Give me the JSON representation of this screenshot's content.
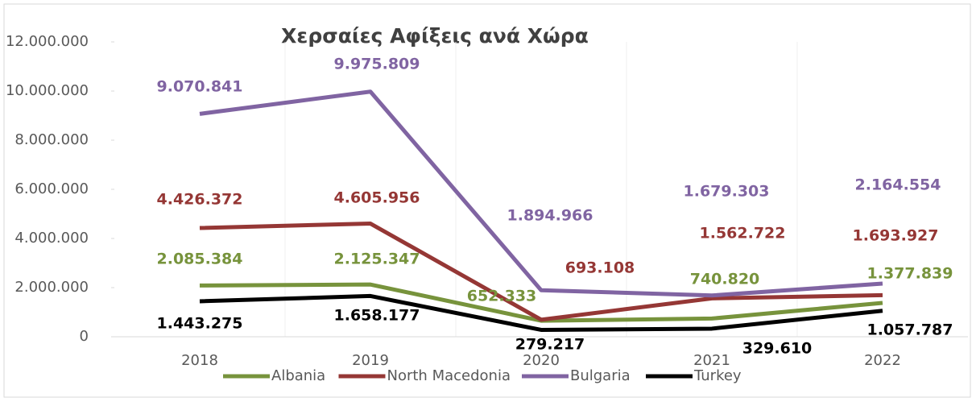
{
  "chart_data": {
    "type": "line",
    "title": "Χερσαίες Αφίξεις ανά Χώρα",
    "categories": [
      "2018",
      "2019",
      "2020",
      "2021",
      "2022"
    ],
    "series": [
      {
        "name": "Albania",
        "color": "#77933c",
        "values": [
          2085384,
          2125347,
          652333,
          740820,
          1377839
        ],
        "value_labels": [
          "2.085.384",
          "2.125.347",
          "652.333",
          "740.820",
          "1.377.839"
        ]
      },
      {
        "name": "North Macedonia",
        "color": "#953735",
        "values": [
          4426372,
          4605956,
          693108,
          1562722,
          1693927
        ],
        "value_labels": [
          "4.426.372",
          "4.605.956",
          "693.108",
          "1.562.722",
          "1.693.927"
        ]
      },
      {
        "name": "Bulgaria",
        "color": "#8064a2",
        "values": [
          9070841,
          9975809,
          1894966,
          1679303,
          2164554
        ],
        "value_labels": [
          "9.070.841",
          "9.975.809",
          "1.894.966",
          "1.679.303",
          "2.164.554"
        ]
      },
      {
        "name": "Turkey",
        "color": "#000000",
        "values": [
          1443275,
          1658177,
          279217,
          329610,
          1057787
        ],
        "value_labels": [
          "1.443.275",
          "1.658.177",
          "279.217",
          "329.610",
          "1.057.787"
        ]
      }
    ],
    "ylim": [
      0,
      12000000
    ],
    "yticks": [
      0,
      {
        "value": 2000000,
        "label": "2.000.000"
      },
      {
        "value": 4000000,
        "label": "4.000.000"
      },
      {
        "value": 6000000,
        "label": "6.000.000"
      },
      {
        "value": 8000000,
        "label": "8.000.000"
      },
      {
        "value": 10000000,
        "label": "10.000.000"
      },
      {
        "value": 12000000,
        "label": "12.000.000"
      }
    ],
    "legend": "bottom"
  }
}
